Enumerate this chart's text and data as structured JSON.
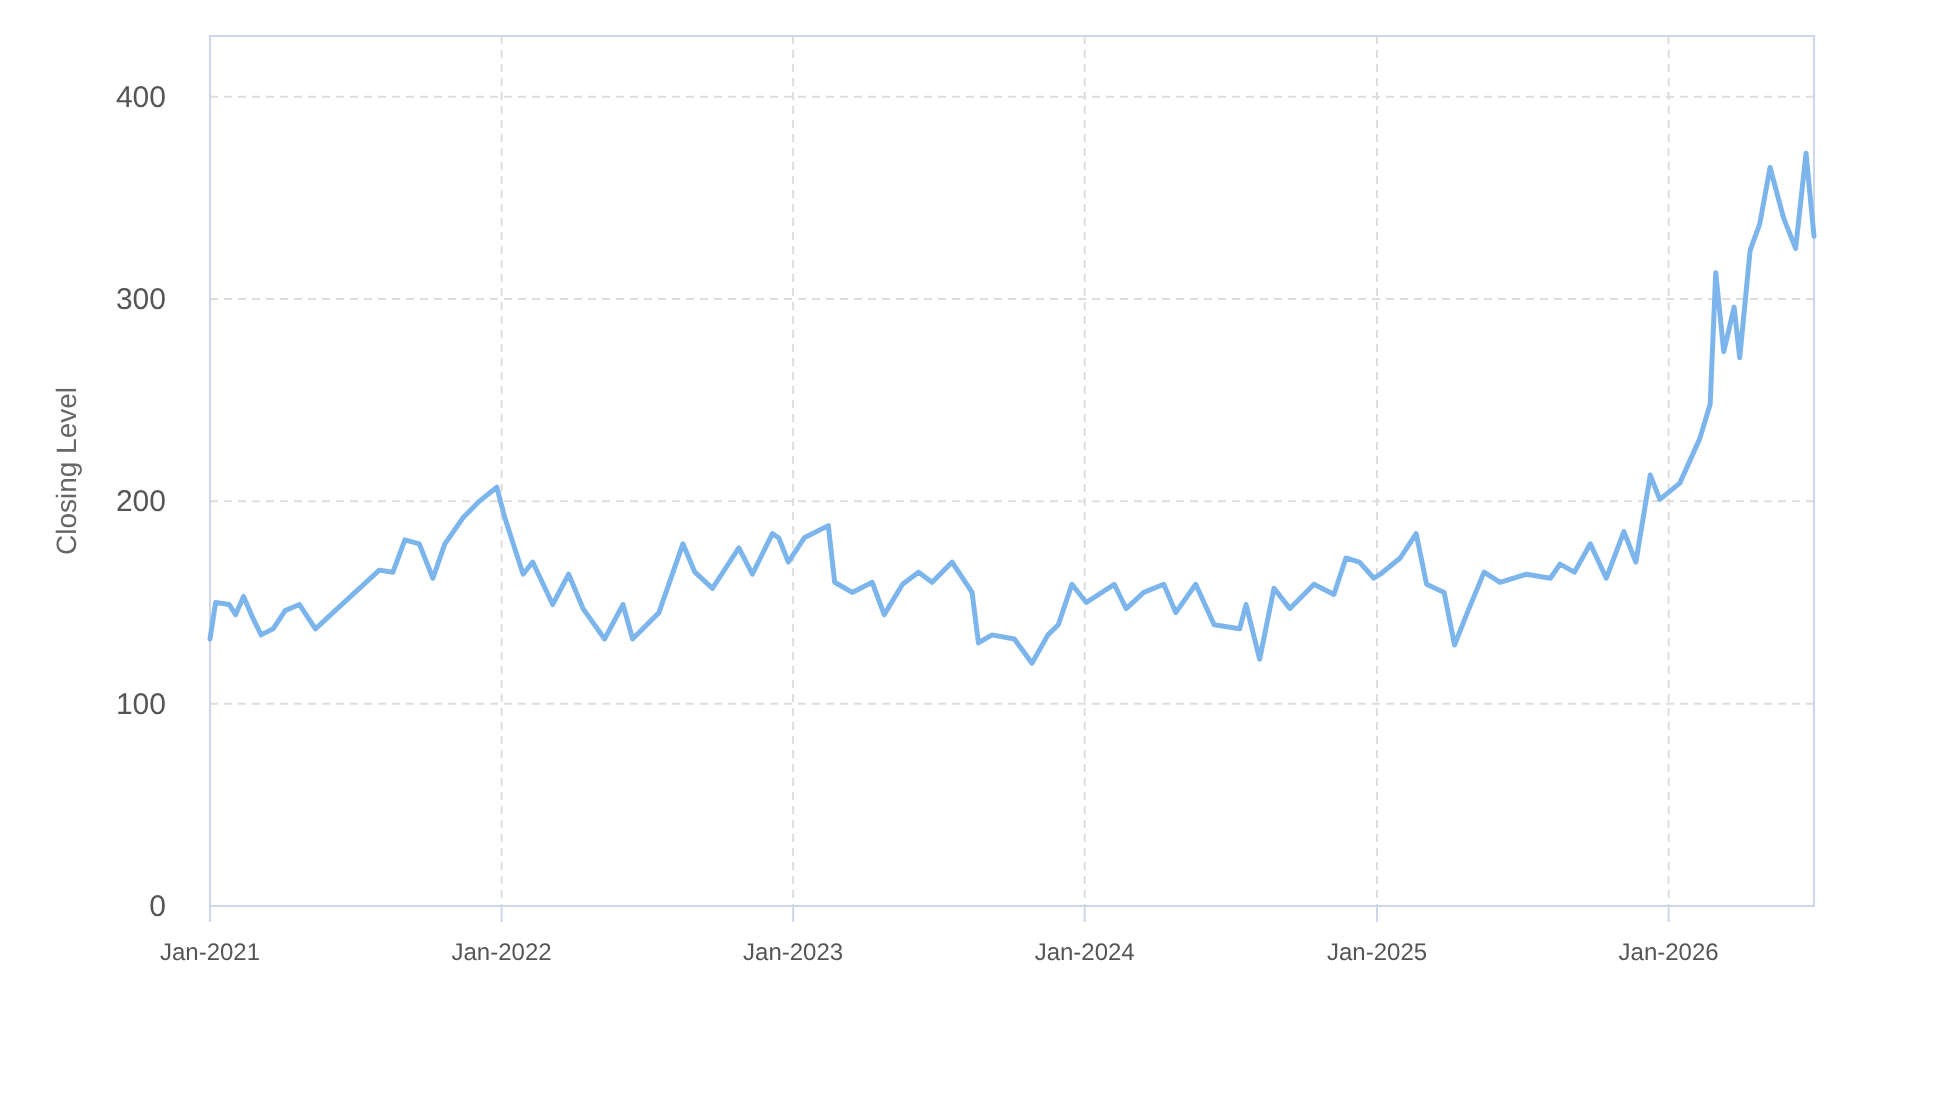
{
  "chart_data": {
    "type": "line",
    "ylabel": "Closing Level",
    "grid": true,
    "marker": "none",
    "line_style": "solid",
    "xlim": [
      "2021-01-01",
      "2026-07-02"
    ],
    "ylim": [
      0,
      430
    ],
    "xticks": [
      {
        "value": "2021-01-01",
        "label": "Jan-2021"
      },
      {
        "value": "2022-01-01",
        "label": "Jan-2022"
      },
      {
        "value": "2023-01-01",
        "label": "Jan-2023"
      },
      {
        "value": "2024-01-01",
        "label": "Jan-2024"
      },
      {
        "value": "2025-01-01",
        "label": "Jan-2025"
      },
      {
        "value": "2026-01-01",
        "label": "Jan-2026"
      }
    ],
    "yticks": [
      0,
      100,
      200,
      300,
      400
    ],
    "x": [
      "2021-01-01",
      "2021-01-08",
      "2021-01-25",
      "2021-02-02",
      "2021-02-12",
      "2021-02-24",
      "2021-03-06",
      "2021-03-21",
      "2021-04-05",
      "2021-04-23",
      "2021-05-13",
      "2021-06-04",
      "2021-07-07",
      "2021-08-01",
      "2021-08-18",
      "2021-09-02",
      "2021-09-20",
      "2021-10-07",
      "2021-10-22",
      "2021-11-14",
      "2021-12-04",
      "2021-12-26",
      "2022-01-05",
      "2022-01-28",
      "2022-02-09",
      "2022-03-06",
      "2022-03-26",
      "2022-04-13",
      "2022-05-10",
      "2022-06-02",
      "2022-06-14",
      "2022-07-17",
      "2022-08-16",
      "2022-08-31",
      "2022-09-22",
      "2022-10-25",
      "2022-11-11",
      "2022-12-06",
      "2022-12-14",
      "2022-12-26",
      "2023-01-15",
      "2023-02-14",
      "2023-02-22",
      "2023-03-16",
      "2023-04-10",
      "2023-04-25",
      "2023-05-18",
      "2023-06-07",
      "2023-06-24",
      "2023-07-19",
      "2023-08-13",
      "2023-08-21",
      "2023-09-07",
      "2023-10-05",
      "2023-10-27",
      "2023-11-16",
      "2023-11-29",
      "2023-12-16",
      "2024-01-03",
      "2024-02-07",
      "2024-02-22",
      "2024-03-15",
      "2024-04-09",
      "2024-04-24",
      "2024-05-19",
      "2024-06-11",
      "2024-07-13",
      "2024-07-21",
      "2024-08-07",
      "2024-08-25",
      "2024-09-14",
      "2024-10-14",
      "2024-11-08",
      "2024-11-23",
      "2024-12-10",
      "2024-12-28",
      "2025-01-05",
      "2025-01-30",
      "2025-02-19",
      "2025-03-04",
      "2025-03-26",
      "2025-04-08",
      "2025-04-23",
      "2025-05-15",
      "2025-06-04",
      "2025-07-07",
      "2025-08-06",
      "2025-08-18",
      "2025-09-05",
      "2025-09-25",
      "2025-10-15",
      "2025-11-06",
      "2025-11-21",
      "2025-12-09",
      "2025-12-21",
      "2026-01-15",
      "2026-02-09",
      "2026-02-22",
      "2026-03-01",
      "2026-03-11",
      "2026-03-24",
      "2026-03-31",
      "2026-04-13",
      "2026-04-25",
      "2026-05-08",
      "2026-05-25",
      "2026-06-09",
      "2026-06-22",
      "2026-07-02"
    ],
    "series": [
      {
        "color": "#7cb5ec",
        "values": [
          132,
          150,
          149,
          144,
          153,
          142,
          134,
          137,
          146,
          149,
          137,
          145,
          157,
          166,
          165,
          181,
          179,
          162,
          179,
          192,
          200,
          207,
          192,
          164,
          170,
          149,
          164,
          147,
          132,
          149,
          132,
          145,
          179,
          165,
          157,
          177,
          164,
          184,
          182,
          170,
          182,
          188,
          160,
          155,
          160,
          144,
          159,
          165,
          160,
          170,
          155,
          130,
          134,
          132,
          120,
          134,
          139,
          159,
          150,
          159,
          147,
          155,
          159,
          145,
          159,
          139,
          137,
          149,
          122,
          157,
          147,
          159,
          154,
          172,
          170,
          162,
          164,
          172,
          184,
          159,
          155,
          129,
          144,
          165,
          160,
          164,
          162,
          169,
          165,
          179,
          162,
          185,
          170,
          213,
          201,
          209,
          231,
          248,
          313,
          274,
          296,
          271,
          324,
          337,
          365,
          340,
          325,
          372,
          331
        ]
      }
    ]
  }
}
